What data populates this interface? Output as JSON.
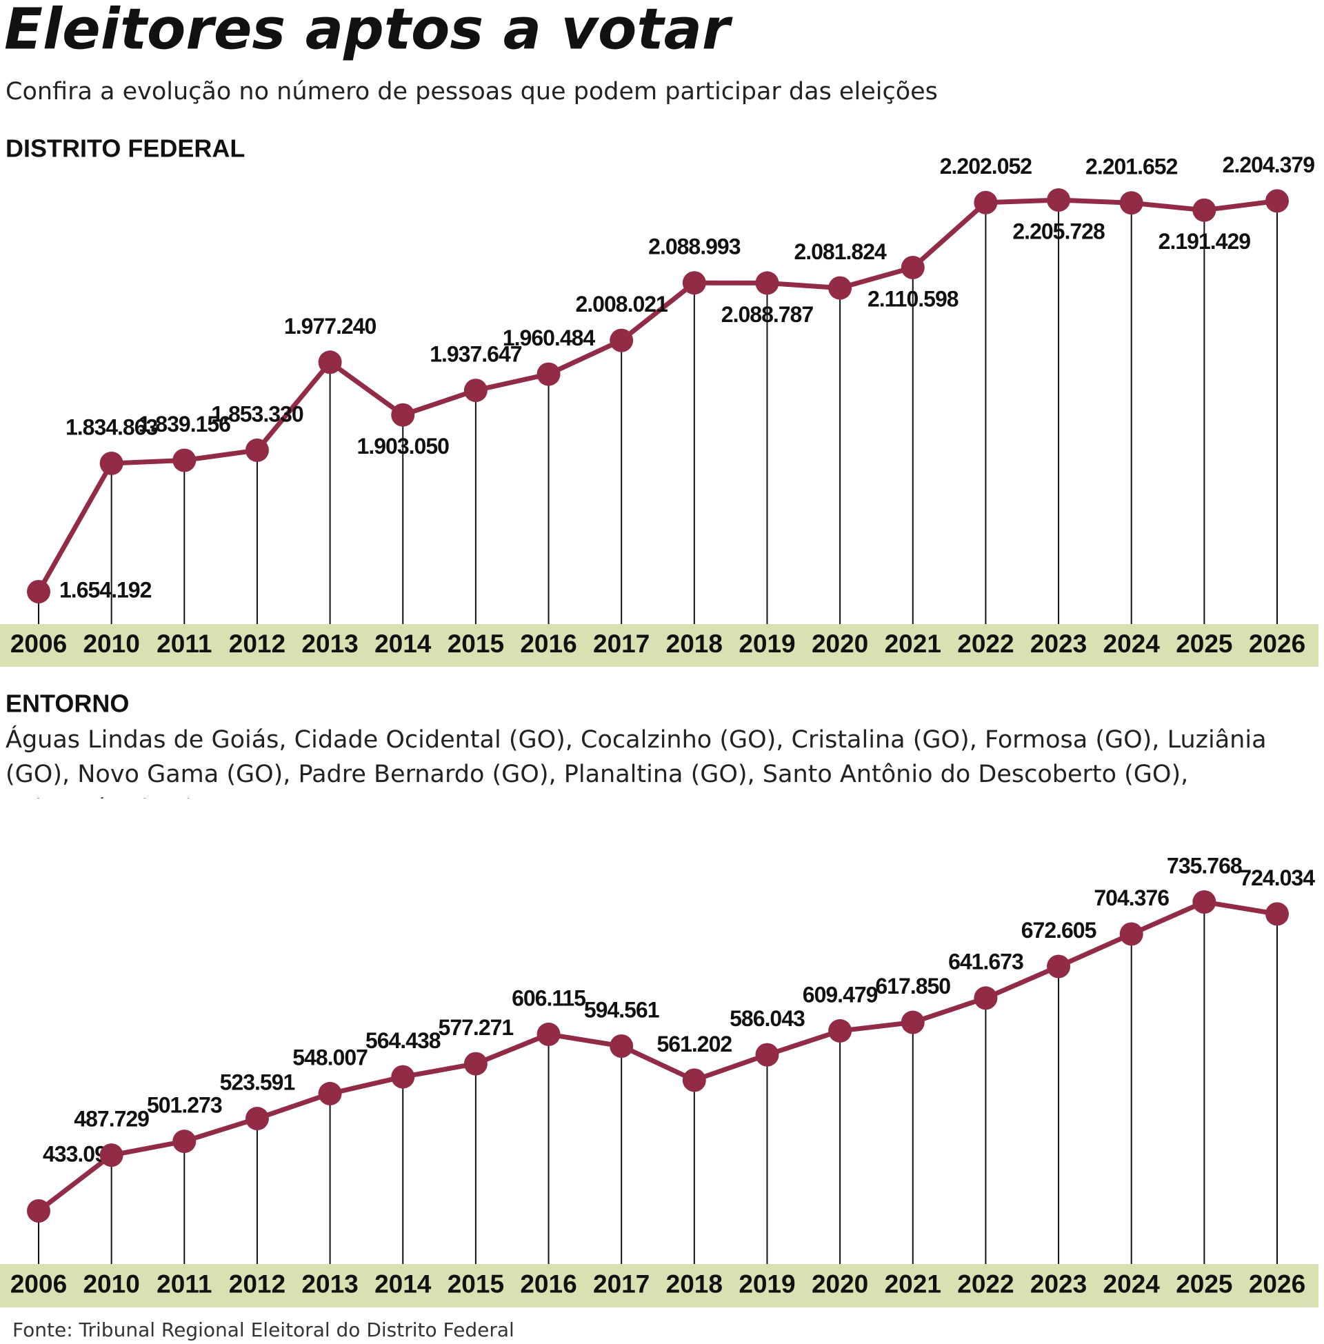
{
  "title": "Eleitores aptos a votar",
  "subtitle": "Confira a evolução no número de pessoas que podem participar das eleições",
  "source": "Fonte: Tribunal Regional Eleitoral do Distrito Federal",
  "chart_data": [
    {
      "type": "line",
      "title": "DISTRITO FEDERAL",
      "categories": [
        "2006",
        "2010",
        "2011",
        "2012",
        "2013",
        "2014",
        "2015",
        "2016",
        "2017",
        "2018",
        "2019",
        "2020",
        "2021",
        "2022",
        "2023",
        "2024",
        "2025",
        "2026"
      ],
      "series": [
        {
          "color": "#922c46",
          "values": [
            1654192,
            1834863,
            1839156,
            1853330,
            1977240,
            1903050,
            1937647,
            1960484,
            2008021,
            2088993,
            2088787,
            2081824,
            2110598,
            2202052,
            2205728,
            2201652,
            2191429,
            2204379
          ],
          "value_labels": [
            "1.654.192",
            "1.834.863",
            "1.839.156",
            "1.853.330",
            "1.977.240",
            "1.903.050",
            "1.937.647",
            "1.960.484",
            "2.008.021",
            "2.088.993",
            "2.088.787",
            "2.081.824",
            "2.110.598",
            "2.202.052",
            "2.205.728",
            "2.201.652",
            "2.191.429",
            "2.204.379"
          ]
        }
      ]
    },
    {
      "type": "line",
      "title": "ENTORNO",
      "subtitle": "Águas Lindas de Goiás, Cidade Ocidental (GO), Cocalzinho (GO), Cristalina (GO), Formosa (GO), Luziânia (GO), Novo Gama (GO), Padre Bernardo (GO), Planaltina (GO),  Santo Antônio do Descoberto (GO), Valparaíso (GO):",
      "categories": [
        "2006",
        "2010",
        "2011",
        "2012",
        "2013",
        "2014",
        "2015",
        "2016",
        "2017",
        "2018",
        "2019",
        "2020",
        "2021",
        "2022",
        "2023",
        "2024",
        "2025",
        "2026"
      ],
      "series": [
        {
          "color": "#922c46",
          "values": [
            433096,
            487729,
            501273,
            523591,
            548007,
            564438,
            577271,
            606115,
            594561,
            561202,
            586043,
            609479,
            617850,
            641673,
            672605,
            704376,
            735768,
            724034
          ],
          "value_labels": [
            "433.096",
            "487.729",
            "501.273",
            "523.591",
            "548.007",
            "564.438",
            "577.271",
            "606.115",
            "594.561",
            "561.202",
            "586.043",
            "609.479",
            "617.850",
            "641.673",
            "672.605",
            "704.376",
            "735.768",
            "724.034"
          ]
        }
      ]
    }
  ]
}
